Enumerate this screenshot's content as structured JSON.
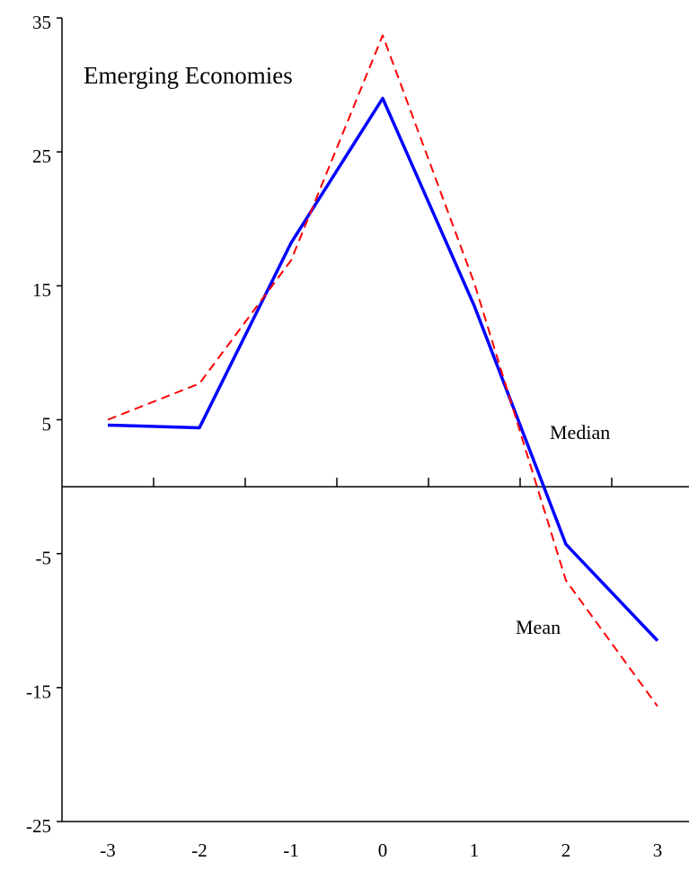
{
  "chart_data": {
    "type": "line",
    "title": "Emerging Economies",
    "annotations": [
      "Median",
      "Mean"
    ],
    "x": [
      -3,
      -2,
      -1,
      0,
      1,
      2,
      3
    ],
    "xlim": [
      -3.5,
      3.5
    ],
    "xticks": [
      -3,
      -2,
      -1,
      0,
      1,
      2,
      3
    ],
    "ylim": [
      -25,
      35
    ],
    "yticks": [
      -25,
      -15,
      -5,
      5,
      15,
      25,
      35
    ],
    "series": [
      {
        "color": "#0000ff",
        "dash": false,
        "values": [
          4.6,
          4.4,
          18.2,
          29.0,
          13.5,
          -4.3,
          -11.5
        ]
      },
      {
        "color": "#ff0000",
        "dash": true,
        "values": [
          5.0,
          7.7,
          16.9,
          33.7,
          15.2,
          -7.0,
          -16.4
        ]
      }
    ]
  }
}
